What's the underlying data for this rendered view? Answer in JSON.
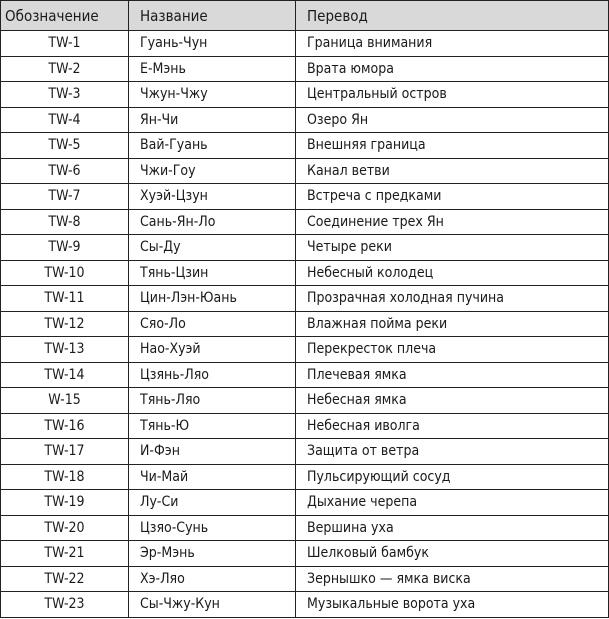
{
  "table": {
    "headers": [
      "Обозначение",
      "Название",
      "Перевод"
    ],
    "rows": [
      [
        "TW-1",
        "Гуань-Чун",
        "Граница внимания"
      ],
      [
        "TW-2",
        "Е-Мэнь",
        "Врата юмора"
      ],
      [
        "TW-3",
        "Чжун-Чжу",
        "Центральный остров"
      ],
      [
        "TW-4",
        "Ян-Чи",
        "Озеро Ян"
      ],
      [
        "TW-5",
        "Вай-Гуань",
        "Внешняя граница"
      ],
      [
        "TW-6",
        "Чжи-Гоу",
        "Канал ветви"
      ],
      [
        "TW-7",
        "Хуэй-Цзун",
        "Встреча с предками"
      ],
      [
        "TW-8",
        "Сань-Ян-Ло",
        "Соединение трех Ян"
      ],
      [
        "TW-9",
        "Сы-Ду",
        "Четыре реки"
      ],
      [
        "TW-10",
        "Тянь-Цзин",
        "Небесный колодец"
      ],
      [
        "TW-11",
        "Цин-Лэн-Юань",
        "Прозрачная холодная пучина"
      ],
      [
        "TW-12",
        "Сяо-Ло",
        "Влажная пойма реки"
      ],
      [
        "TW-13",
        "Нао-Хуэй",
        "Перекресток плеча"
      ],
      [
        "TW-14",
        "Цзянь-Ляо",
        "Плечевая ямка"
      ],
      [
        "W-15",
        "Тянь-Ляо",
        "Небесная ямка"
      ],
      [
        "TW-16",
        "Тянь-Ю",
        "Небесная иволга"
      ],
      [
        "TW-17",
        "И-Фэн",
        "Защита от ветра"
      ],
      [
        "TW-18",
        "Чи-Май",
        "Пульсирующий сосуд"
      ],
      [
        "TW-19",
        "Лу-Си",
        "Дыхание черепа"
      ],
      [
        "TW-20",
        "Цзяо-Сунь",
        "Вершина уха"
      ],
      [
        "TW-21",
        "Эр-Мэнь",
        "Шелковый бамбук"
      ],
      [
        "TW-22",
        "Хэ-Ляо",
        "Зернышко — ямка виска"
      ],
      [
        "TW-23",
        "Сы-Чжу-Кун",
        "Музыкальные ворота уха"
      ]
    ]
  }
}
